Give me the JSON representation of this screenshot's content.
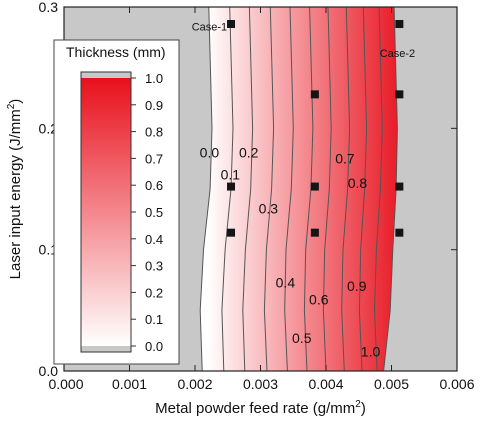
{
  "chart_data": {
    "type": "heatmap",
    "xlabel": "Metal powder feed rate (g/mm",
    "xlabel_sup": "2",
    "xlabel_close": ")",
    "ylabel": "Laser input energy (J/mm",
    "ylabel_sup": "2",
    "ylabel_close": ")",
    "xlim": [
      0,
      0.006
    ],
    "ylim": [
      0,
      0.3
    ],
    "x_ticks": [
      "0.000",
      "0.001",
      "0.002",
      "0.003",
      "0.004",
      "0.005",
      "0.006"
    ],
    "y_ticks": [
      "0.0",
      "0.1",
      "0.2",
      "0.3"
    ],
    "x_tick_values": [
      0,
      0.001,
      0.002,
      0.003,
      0.004,
      0.005,
      0.006
    ],
    "y_tick_values": [
      0,
      0.1,
      0.2,
      0.3
    ],
    "colorbar": {
      "title": "Thickness (mm)",
      "ticks": [
        "0.0",
        "0.1",
        "0.2",
        "0.3",
        "0.4",
        "0.5",
        "0.6",
        "0.7",
        "0.8",
        "0.9",
        "1.0"
      ],
      "tick_values": [
        0,
        0.1,
        0.2,
        0.3,
        0.4,
        0.5,
        0.6,
        0.7,
        0.8,
        0.9,
        1.0
      ],
      "min_color": "#ffffff",
      "max_color": "#e8101c",
      "out_of_range_color": "#c8c8c8"
    },
    "contours": [
      {
        "level": 0.0,
        "label": "0.0",
        "points": [
          [
            0.00221,
            0.3
          ],
          [
            0.00226,
            0.2
          ],
          [
            0.00223,
            0.15
          ],
          [
            0.00213,
            0.1
          ],
          [
            0.00208,
            0.05
          ],
          [
            0.00211,
            0.0
          ]
        ],
        "label_at": [
          0.00222,
          0.18
        ]
      },
      {
        "level": 0.1,
        "label": "0.1",
        "points": [
          [
            0.00253,
            0.3
          ],
          [
            0.00258,
            0.2
          ],
          [
            0.00255,
            0.15
          ],
          [
            0.00246,
            0.1
          ],
          [
            0.00241,
            0.05
          ],
          [
            0.00244,
            0.0
          ]
        ],
        "label_at": [
          0.00254,
          0.162
        ]
      },
      {
        "level": 0.2,
        "label": "0.2",
        "points": [
          [
            0.00283,
            0.3
          ],
          [
            0.00288,
            0.2
          ],
          [
            0.00285,
            0.15
          ],
          [
            0.00277,
            0.1
          ],
          [
            0.00273,
            0.05
          ],
          [
            0.00276,
            0.0
          ]
        ],
        "label_at": [
          0.00282,
          0.18
        ]
      },
      {
        "level": 0.3,
        "label": "0.3",
        "points": [
          [
            0.00315,
            0.3
          ],
          [
            0.0032,
            0.2
          ],
          [
            0.00317,
            0.15
          ],
          [
            0.00309,
            0.1
          ],
          [
            0.00306,
            0.05
          ],
          [
            0.0031,
            0.0
          ]
        ],
        "label_at": [
          0.00312,
          0.134
        ]
      },
      {
        "level": 0.4,
        "label": "0.4",
        "points": [
          [
            0.00345,
            0.3
          ],
          [
            0.0035,
            0.2
          ],
          [
            0.00347,
            0.15
          ],
          [
            0.00339,
            0.1
          ],
          [
            0.00337,
            0.05
          ],
          [
            0.00341,
            0.0
          ]
        ],
        "label_at": [
          0.00338,
          0.073
        ]
      },
      {
        "level": 0.5,
        "label": "0.5",
        "points": [
          [
            0.00375,
            0.3
          ],
          [
            0.0038,
            0.2
          ],
          [
            0.00377,
            0.15
          ],
          [
            0.00369,
            0.1
          ],
          [
            0.00367,
            0.05
          ],
          [
            0.00371,
            0.0
          ]
        ],
        "label_at": [
          0.00363,
          0.027
        ]
      },
      {
        "level": 0.6,
        "label": "0.6",
        "points": [
          [
            0.00403,
            0.3
          ],
          [
            0.00408,
            0.2
          ],
          [
            0.00405,
            0.15
          ],
          [
            0.00398,
            0.1
          ],
          [
            0.00396,
            0.05
          ],
          [
            0.004,
            0.0
          ]
        ],
        "label_at": [
          0.00389,
          0.059
        ]
      },
      {
        "level": 0.7,
        "label": "0.7",
        "points": [
          [
            0.00431,
            0.3
          ],
          [
            0.00436,
            0.2
          ],
          [
            0.00433,
            0.15
          ],
          [
            0.00426,
            0.1
          ],
          [
            0.00424,
            0.05
          ],
          [
            0.00428,
            0.0
          ]
        ],
        "label_at": [
          0.00429,
          0.175
        ]
      },
      {
        "level": 0.8,
        "label": "0.8",
        "points": [
          [
            0.00457,
            0.3
          ],
          [
            0.00462,
            0.2
          ],
          [
            0.00459,
            0.15
          ],
          [
            0.00453,
            0.1
          ],
          [
            0.00451,
            0.05
          ],
          [
            0.00455,
            0.0
          ]
        ],
        "label_at": [
          0.00448,
          0.155
        ]
      },
      {
        "level": 0.9,
        "label": "0.9",
        "points": [
          [
            0.00481,
            0.3
          ],
          [
            0.00486,
            0.2
          ],
          [
            0.00483,
            0.15
          ],
          [
            0.00477,
            0.1
          ],
          [
            0.00474,
            0.05
          ],
          [
            0.00478,
            0.0
          ]
        ],
        "label_at": [
          0.00447,
          0.07
        ]
      },
      {
        "level": 1.0,
        "label": "1.0",
        "points": [
          [
            0.00504,
            0.3
          ],
          [
            0.00509,
            0.2
          ],
          [
            0.00507,
            0.15
          ],
          [
            0.00502,
            0.1
          ],
          [
            0.00498,
            0.05
          ],
          [
            0.00488,
            0.0
          ]
        ],
        "label_at": [
          0.00468,
          0.016
        ]
      }
    ],
    "points": [
      {
        "x": 0.00255,
        "y": 0.286
      },
      {
        "x": 0.00255,
        "y": 0.152
      },
      {
        "x": 0.00255,
        "y": 0.114
      },
      {
        "x": 0.00383,
        "y": 0.228
      },
      {
        "x": 0.00383,
        "y": 0.152
      },
      {
        "x": 0.00383,
        "y": 0.114
      },
      {
        "x": 0.00512,
        "y": 0.286
      },
      {
        "x": 0.00512,
        "y": 0.228
      },
      {
        "x": 0.00512,
        "y": 0.152
      },
      {
        "x": 0.00512,
        "y": 0.114
      }
    ],
    "annotations": [
      {
        "text": "Case-1",
        "x": 0.00195,
        "y": 0.284
      },
      {
        "text": "Case-2",
        "x": 0.00482,
        "y": 0.262
      }
    ],
    "grid": false
  }
}
